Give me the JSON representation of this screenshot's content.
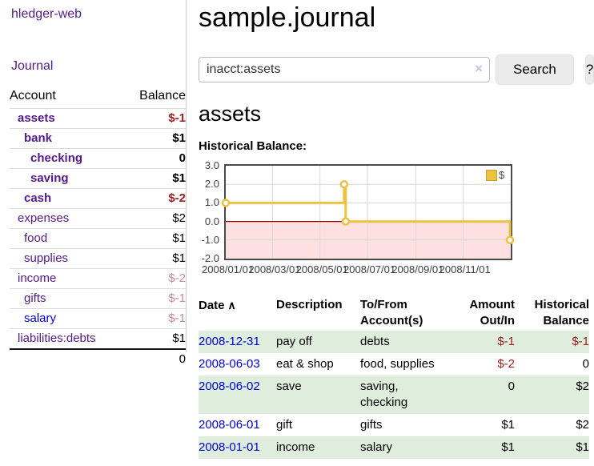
{
  "app": {
    "title": "hledger-web"
  },
  "sidebar": {
    "nav": {
      "journal": "Journal"
    },
    "table": {
      "account_header": "Account",
      "balance_header": "Balance",
      "rows": [
        {
          "name": "assets",
          "balance": "$-1",
          "level": 0,
          "in_account": true,
          "balance_tone": "negative-strong",
          "link_tone": "purple"
        },
        {
          "name": "bank",
          "balance": "$1",
          "level": 1,
          "in_account": true,
          "balance_tone": "normal",
          "link_tone": "purple"
        },
        {
          "name": "checking",
          "balance": "0",
          "level": 2,
          "in_account": true,
          "balance_tone": "normal",
          "link_tone": "purple"
        },
        {
          "name": "saving",
          "balance": "$1",
          "level": 2,
          "in_account": true,
          "balance_tone": "normal",
          "link_tone": "purple"
        },
        {
          "name": "cash",
          "balance": "$-2",
          "level": 1,
          "in_account": true,
          "balance_tone": "negative-strong",
          "link_tone": "purple"
        },
        {
          "name": "expenses",
          "balance": "$2",
          "level": 0,
          "in_account": false,
          "balance_tone": "normal",
          "link_tone": "purple"
        },
        {
          "name": "food",
          "balance": "$1",
          "level": 1,
          "in_account": false,
          "balance_tone": "normal",
          "link_tone": "purple"
        },
        {
          "name": "supplies",
          "balance": "$1",
          "level": 1,
          "in_account": false,
          "balance_tone": "normal",
          "link_tone": "purple"
        },
        {
          "name": "income",
          "balance": "$-2",
          "level": 0,
          "in_account": false,
          "balance_tone": "negative-soft",
          "link_tone": "purple"
        },
        {
          "name": "gifts",
          "balance": "$-1",
          "level": 1,
          "in_account": false,
          "balance_tone": "negative-soft",
          "link_tone": "purple"
        },
        {
          "name": "salary",
          "balance": "$-1",
          "level": 1,
          "in_account": false,
          "balance_tone": "negative-soft",
          "link_tone": "blue"
        },
        {
          "name": "liabilities:debts",
          "balance": "$1",
          "level": 0,
          "in_account": false,
          "balance_tone": "normal",
          "link_tone": "purple"
        }
      ],
      "total": "0"
    }
  },
  "main": {
    "journal_title": "sample.journal",
    "search": {
      "value": "inacct:assets",
      "clear_icon": "×",
      "search_button": "Search",
      "help_button": "?"
    },
    "account_title": "assets",
    "chart_heading": "Historical Balance:"
  },
  "chart_data": {
    "type": "line",
    "step": true,
    "title": "Historical Balance of assets",
    "x_range": [
      "2008-01-01",
      "2009-01-01"
    ],
    "ylim": [
      -2,
      3
    ],
    "grid": true,
    "legend_position": "top-right",
    "yticks": [
      {
        "value": 3,
        "label": "3.0"
      },
      {
        "value": 2,
        "label": "2.0"
      },
      {
        "value": 1,
        "label": "1.0"
      },
      {
        "value": 0,
        "label": "0.0"
      },
      {
        "value": -1,
        "label": "-1.0"
      },
      {
        "value": -2,
        "label": "-2.0"
      }
    ],
    "xticks": [
      {
        "date": "2008-01-01",
        "label": "2008/01/01"
      },
      {
        "date": "2008-03-01",
        "label": "2008/03/01"
      },
      {
        "date": "2008-05-01",
        "label": "2008/05/01"
      },
      {
        "date": "2008-07-01",
        "label": "2008/07/01"
      },
      {
        "date": "2008-09-01",
        "label": "2008/09/01"
      },
      {
        "date": "2008-11-01",
        "label": "2008/11/01"
      }
    ],
    "series": [
      {
        "name": "$",
        "color": "#edc240",
        "marker_fill": "#ffffff",
        "points": [
          {
            "date": "2008-01-01",
            "value": 1
          },
          {
            "date": "2008-06-01",
            "value": 2
          },
          {
            "date": "2008-06-03",
            "value": 0
          },
          {
            "date": "2008-12-31",
            "value": -1
          }
        ]
      }
    ],
    "negative_region_fill": "rgba(255,0,0,0.12)",
    "zero_line_color": "#8b0000",
    "grid_color": "#d8d8d8"
  },
  "register": {
    "columns": [
      "Date",
      "Description",
      "To/From Account(s)",
      "Amount Out/In",
      "Historical Balance"
    ],
    "sort": {
      "column": "Date",
      "direction": "ascending",
      "icon": "∧"
    },
    "rows": [
      {
        "date": "2008-12-31",
        "description": "pay off",
        "accounts": "debts",
        "amount": "$-1",
        "balance": "$-1",
        "amount_negative": true,
        "balance_negative": true,
        "shaded": true
      },
      {
        "date": "2008-06-03",
        "description": "eat & shop",
        "accounts": "food, supplies",
        "amount": "$-2",
        "balance": "0",
        "amount_negative": true,
        "balance_negative": false,
        "shaded": false
      },
      {
        "date": "2008-06-02",
        "description": "save",
        "accounts": "saving,\nchecking",
        "amount": "0",
        "balance": "$2",
        "amount_negative": false,
        "balance_negative": false,
        "shaded": true
      },
      {
        "date": "2008-06-01",
        "description": "gift",
        "accounts": "gifts",
        "amount": "$1",
        "balance": "$2",
        "amount_negative": false,
        "balance_negative": false,
        "shaded": false
      },
      {
        "date": "2008-01-01",
        "description": "income",
        "accounts": "salary",
        "amount": "$1",
        "balance": "$1",
        "amount_negative": false,
        "balance_negative": false,
        "shaded": true
      }
    ]
  },
  "colors": {
    "link_purple": "#551a8b",
    "link_blue": "#0000dd",
    "negative_strong": "#a11f1f",
    "negative_soft": "#c98c8c",
    "row_shade": "#dfeedc",
    "series_gold": "#edc240"
  }
}
